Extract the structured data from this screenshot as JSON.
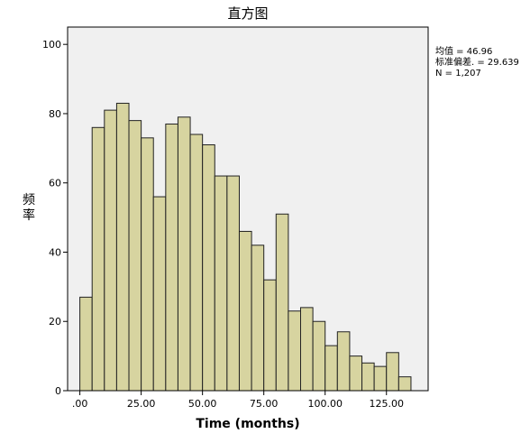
{
  "chart_data": {
    "type": "bar",
    "title": "直方图",
    "xlabel": "Time (months)",
    "ylabel": "频率",
    "bin_width": 5,
    "bin_start": 0,
    "values": [
      27,
      76,
      81,
      83,
      78,
      73,
      56,
      77,
      79,
      74,
      71,
      62,
      62,
      46,
      42,
      32,
      51,
      23,
      24,
      20,
      13,
      17,
      10,
      8,
      7,
      11,
      4
    ],
    "xlim": [
      -5,
      142
    ],
    "ylim": [
      0,
      105
    ],
    "x_ticks": [
      0,
      25,
      50,
      75,
      100,
      125
    ],
    "x_tick_labels": [
      ".00",
      "25.00",
      "50.00",
      "75.00",
      "100.00",
      "125.00"
    ],
    "y_ticks": [
      0,
      20,
      40,
      60,
      80,
      100
    ],
    "y_tick_labels": [
      "0",
      "20",
      "40",
      "60",
      "80",
      "100"
    ],
    "stats": {
      "mean_text": "均值 = 46.96",
      "std_text": "标准偏差. = 29.639",
      "n_text": "N = 1,207"
    },
    "bar_fill": "#d7d4a0",
    "bar_stroke": "#222222",
    "plot_background": "#f0f0f0",
    "grid": false,
    "legend": "none"
  }
}
